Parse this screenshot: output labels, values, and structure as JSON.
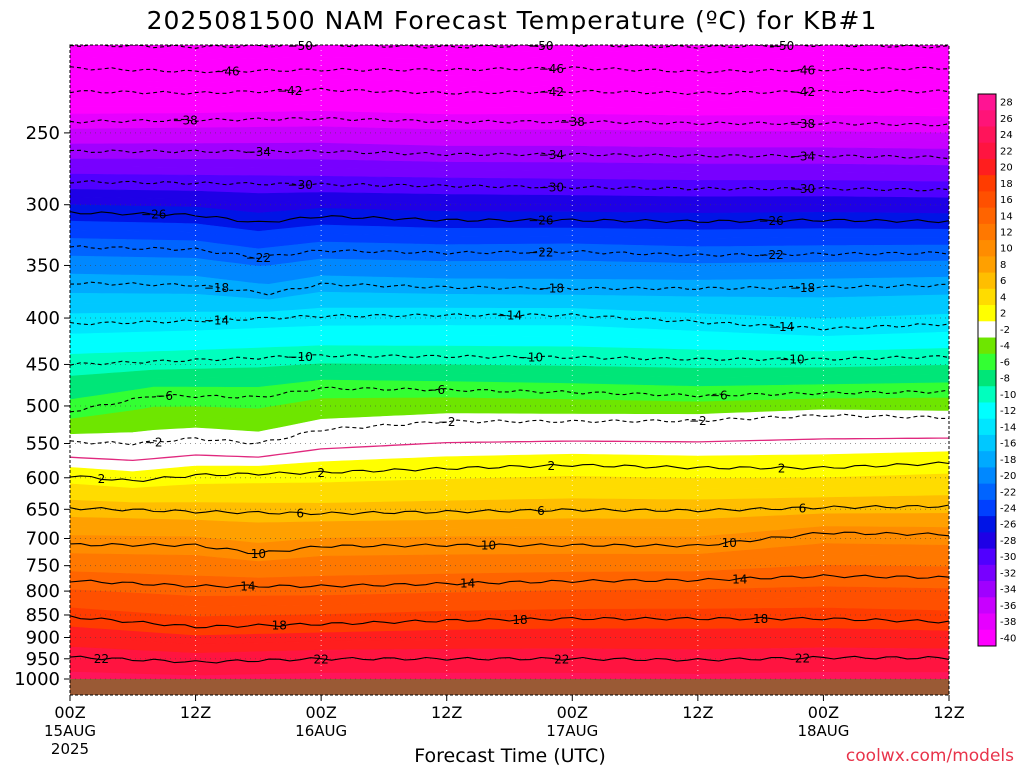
{
  "title": "2025081500 NAM Forecast Temperature (ºC) for KB#1",
  "credit": "coolwx.com/models",
  "colors": {
    "ground": "#9a5a35",
    "freezing_line": "#e0287e",
    "background": "#ffffff"
  },
  "chart_data": {
    "type": "heatmap",
    "title": "2025081500 NAM Forecast Temperature (ºC) for KB#1",
    "xlabel": "Forecast Time (UTC)",
    "ylabel": "",
    "x_unit": "forecast hour",
    "xlim": [
      0,
      84
    ],
    "y_unit": "hPa",
    "ylim": [
      1000,
      200
    ],
    "y_scale": "log-pressure",
    "grid": true,
    "x_ticks": [
      {
        "hour": 0,
        "label": "00Z",
        "date": "15AUG",
        "year": "2025"
      },
      {
        "hour": 12,
        "label": "12Z",
        "date": "",
        "year": ""
      },
      {
        "hour": 24,
        "label": "00Z",
        "date": "16AUG",
        "year": ""
      },
      {
        "hour": 36,
        "label": "12Z",
        "date": "",
        "year": ""
      },
      {
        "hour": 48,
        "label": "00Z",
        "date": "17AUG",
        "year": ""
      },
      {
        "hour": 60,
        "label": "12Z",
        "date": "",
        "year": ""
      },
      {
        "hour": 72,
        "label": "00Z",
        "date": "18AUG",
        "year": ""
      },
      {
        "hour": 84,
        "label": "12Z",
        "date": "",
        "year": ""
      }
    ],
    "y_ticks": [
      250,
      300,
      350,
      400,
      450,
      500,
      550,
      600,
      650,
      700,
      750,
      800,
      850,
      900,
      950,
      1000
    ],
    "colorbar": {
      "labels": [
        "28",
        "26",
        "24",
        "22",
        "20",
        "18",
        "16",
        "14",
        "12",
        "10",
        "8",
        "6",
        "4",
        "2",
        "-2",
        "-4",
        "-6",
        "-8",
        "-10",
        "-12",
        "-14",
        "-16",
        "-18",
        "-20",
        "-22",
        "-24",
        "-26",
        "-28",
        "-30",
        "-32",
        "-34",
        "-36",
        "-38",
        "-40"
      ],
      "colors": [
        "#ff1493",
        "#ff1478",
        "#ff145a",
        "#ff1440",
        "#ff1e1e",
        "#ff3c00",
        "#ff5000",
        "#ff6400",
        "#ff7800",
        "#ff8c00",
        "#ffa000",
        "#ffbe00",
        "#ffdc00",
        "#ffff00",
        "#ffffff",
        "#6ee600",
        "#33ff33",
        "#00e678",
        "#00ffbe",
        "#00ffff",
        "#00e6ff",
        "#00c8ff",
        "#00aaff",
        "#0088ff",
        "#0064ff",
        "#0040ff",
        "#0014e6",
        "#1e00e6",
        "#5000ff",
        "#7800ff",
        "#a000ff",
        "#c800ff",
        "#e600ff",
        "#ff00ff"
      ]
    },
    "isotherms": [
      {
        "label": "-50",
        "dashed": true,
        "points": [
          [
            0,
            200
          ],
          [
            12,
            201
          ],
          [
            24,
            200
          ],
          [
            36,
            201
          ],
          [
            48,
            200
          ],
          [
            60,
            201
          ],
          [
            72,
            200
          ],
          [
            84,
            201
          ]
        ],
        "label_hours": [
          22,
          45,
          68
        ]
      },
      {
        "label": "-46",
        "dashed": true,
        "points": [
          [
            0,
            212
          ],
          [
            12,
            214
          ],
          [
            24,
            213
          ],
          [
            36,
            213
          ],
          [
            48,
            212
          ],
          [
            60,
            214
          ],
          [
            72,
            213
          ],
          [
            84,
            212
          ]
        ],
        "label_hours": [
          15,
          46,
          70
        ]
      },
      {
        "label": "-42",
        "dashed": true,
        "points": [
          [
            0,
            225
          ],
          [
            12,
            226
          ],
          [
            24,
            224
          ],
          [
            36,
            226
          ],
          [
            48,
            225
          ],
          [
            60,
            226
          ],
          [
            72,
            225
          ],
          [
            84,
            225
          ]
        ],
        "label_hours": [
          21,
          46,
          70
        ]
      },
      {
        "label": "-38",
        "dashed": true,
        "points": [
          [
            0,
            243
          ],
          [
            12,
            242
          ],
          [
            24,
            241
          ],
          [
            36,
            243
          ],
          [
            48,
            243
          ],
          [
            60,
            244
          ],
          [
            72,
            244
          ],
          [
            84,
            245
          ]
        ],
        "label_hours": [
          11,
          48,
          70
        ]
      },
      {
        "label": "-34",
        "dashed": true,
        "points": [
          [
            0,
            262
          ],
          [
            12,
            262
          ],
          [
            24,
            262
          ],
          [
            36,
            264
          ],
          [
            48,
            264
          ],
          [
            60,
            265
          ],
          [
            72,
            265
          ],
          [
            84,
            266
          ]
        ],
        "label_hours": [
          18,
          46,
          70
        ]
      },
      {
        "label": "-30",
        "dashed": true,
        "points": [
          [
            0,
            283
          ],
          [
            12,
            284
          ],
          [
            24,
            285
          ],
          [
            36,
            286
          ],
          [
            48,
            287
          ],
          [
            60,
            288
          ],
          [
            72,
            288
          ],
          [
            84,
            289
          ]
        ],
        "label_hours": [
          22,
          46,
          70
        ]
      },
      {
        "label": "-26",
        "dashed": false,
        "points": [
          [
            0,
            306
          ],
          [
            12,
            308
          ],
          [
            18,
            314
          ],
          [
            24,
            309
          ],
          [
            36,
            312
          ],
          [
            48,
            312
          ],
          [
            60,
            313
          ],
          [
            72,
            312
          ],
          [
            84,
            313
          ]
        ],
        "label_hours": [
          8,
          45,
          67
        ]
      },
      {
        "label": "-22",
        "dashed": true,
        "points": [
          [
            0,
            334
          ],
          [
            12,
            336
          ],
          [
            18,
            343
          ],
          [
            24,
            337
          ],
          [
            36,
            339
          ],
          [
            48,
            338
          ],
          [
            60,
            341
          ],
          [
            72,
            340
          ],
          [
            84,
            339
          ]
        ],
        "label_hours": [
          18,
          45,
          67
        ]
      },
      {
        "label": "-18",
        "dashed": true,
        "points": [
          [
            0,
            366
          ],
          [
            12,
            368
          ],
          [
            19,
            376
          ],
          [
            24,
            367
          ],
          [
            36,
            370
          ],
          [
            48,
            371
          ],
          [
            60,
            371
          ],
          [
            72,
            370
          ],
          [
            84,
            368
          ]
        ],
        "label_hours": [
          14,
          46,
          70
        ]
      },
      {
        "label": "-14",
        "dashed": true,
        "points": [
          [
            0,
            406
          ],
          [
            12,
            403
          ],
          [
            24,
            398
          ],
          [
            36,
            397
          ],
          [
            48,
            397
          ],
          [
            60,
            404
          ],
          [
            72,
            411
          ],
          [
            84,
            406
          ]
        ],
        "label_hours": [
          14,
          42,
          68
        ]
      },
      {
        "label": "-10",
        "dashed": true,
        "points": [
          [
            0,
            450
          ],
          [
            12,
            445
          ],
          [
            24,
            440
          ],
          [
            36,
            441
          ],
          [
            48,
            442
          ],
          [
            60,
            444
          ],
          [
            72,
            444
          ],
          [
            84,
            441
          ]
        ],
        "label_hours": [
          22,
          44,
          69
        ]
      },
      {
        "label": "-6",
        "dashed": true,
        "points": [
          [
            0,
            507
          ],
          [
            8,
            487
          ],
          [
            18,
            489
          ],
          [
            24,
            478
          ],
          [
            36,
            480
          ],
          [
            48,
            483
          ],
          [
            60,
            487
          ],
          [
            72,
            484
          ],
          [
            84,
            482
          ]
        ],
        "label_hours": [
          9,
          35,
          62
        ]
      },
      {
        "label": "-2",
        "dashed": true,
        "points": [
          [
            0,
            548
          ],
          [
            6,
            550
          ],
          [
            12,
            543
          ],
          [
            18,
            550
          ],
          [
            24,
            531
          ],
          [
            36,
            520
          ],
          [
            48,
            520
          ],
          [
            60,
            519
          ],
          [
            72,
            512
          ],
          [
            84,
            515
          ]
        ],
        "label_hours": [
          8,
          36,
          60
        ]
      },
      {
        "label": "2",
        "dashed": false,
        "points": [
          [
            0,
            597
          ],
          [
            6,
            605
          ],
          [
            12,
            596
          ],
          [
            24,
            592
          ],
          [
            36,
            586
          ],
          [
            48,
            581
          ],
          [
            60,
            585
          ],
          [
            72,
            585
          ],
          [
            84,
            578
          ]
        ],
        "label_hours": [
          3,
          24,
          46,
          68
        ]
      },
      {
        "label": "6",
        "dashed": false,
        "points": [
          [
            0,
            648
          ],
          [
            12,
            654
          ],
          [
            24,
            657
          ],
          [
            36,
            654
          ],
          [
            48,
            651
          ],
          [
            60,
            652
          ],
          [
            72,
            647
          ],
          [
            84,
            645
          ]
        ],
        "label_hours": [
          22,
          45,
          70
        ]
      },
      {
        "label": "10",
        "dashed": false,
        "points": [
          [
            0,
            711
          ],
          [
            12,
            712
          ],
          [
            18,
            727
          ],
          [
            24,
            714
          ],
          [
            36,
            712
          ],
          [
            48,
            712
          ],
          [
            60,
            713
          ],
          [
            72,
            690
          ],
          [
            84,
            693
          ]
        ],
        "label_hours": [
          18,
          40,
          63
        ]
      },
      {
        "label": "14",
        "dashed": false,
        "points": [
          [
            0,
            779
          ],
          [
            12,
            790
          ],
          [
            24,
            790
          ],
          [
            36,
            785
          ],
          [
            48,
            780
          ],
          [
            60,
            778
          ],
          [
            72,
            770
          ],
          [
            84,
            773
          ]
        ],
        "label_hours": [
          17,
          38,
          64
        ]
      },
      {
        "label": "18",
        "dashed": false,
        "points": [
          [
            0,
            854
          ],
          [
            12,
            876
          ],
          [
            24,
            870
          ],
          [
            36,
            862
          ],
          [
            48,
            858
          ],
          [
            60,
            858
          ],
          [
            72,
            858
          ],
          [
            84,
            865
          ]
        ],
        "label_hours": [
          20,
          43,
          66
        ]
      },
      {
        "label": "22",
        "dashed": false,
        "points": [
          [
            0,
            946
          ],
          [
            12,
            958
          ],
          [
            24,
            950
          ],
          [
            36,
            950
          ],
          [
            48,
            950
          ],
          [
            60,
            953
          ],
          [
            72,
            947
          ],
          [
            84,
            948
          ]
        ],
        "label_hours": [
          3,
          24,
          47,
          70
        ]
      }
    ]
  }
}
